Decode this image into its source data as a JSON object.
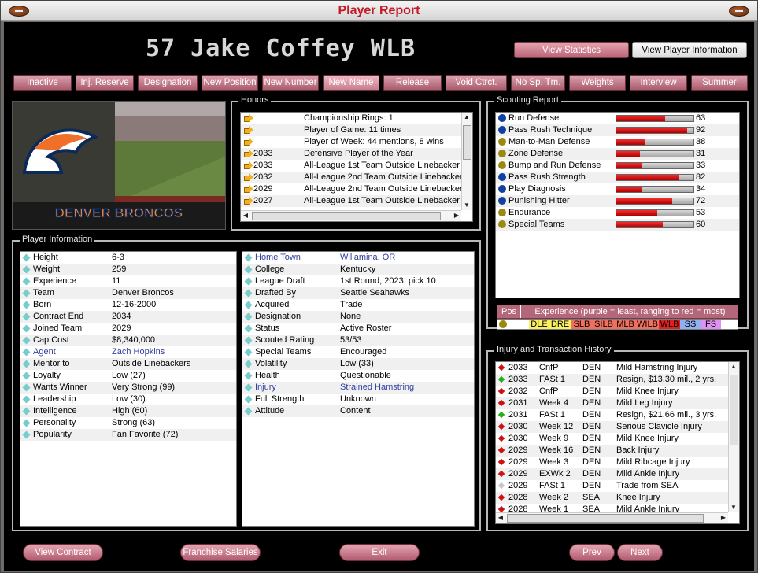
{
  "window": {
    "title": "Player Report"
  },
  "player": {
    "heading": "57  Jake Coffey  WLB"
  },
  "top_buttons": {
    "view_statistics": "View Statistics",
    "view_player_information": "View Player Information"
  },
  "nav": [
    "Inactive",
    "Inj. Reserve",
    "Designation",
    "New Position",
    "New Number",
    "New Name",
    "Release",
    "Void Ctrct.",
    "No Sp. Tm.",
    "Weights",
    "Interview",
    "Summer"
  ],
  "team": {
    "name": "DENVER BRONCOS"
  },
  "honors": {
    "label": "Honors",
    "rows": [
      {
        "year": "",
        "text": "Championship Rings: 1"
      },
      {
        "year": "",
        "text": "Player of Game: 11 times"
      },
      {
        "year": "",
        "text": "Player of Week: 44 mentions, 8 wins"
      },
      {
        "year": "2033",
        "text": "Defensive Player of the Year"
      },
      {
        "year": "2033",
        "text": "All-League 1st Team Outside Linebacker"
      },
      {
        "year": "2032",
        "text": "All-League 2nd Team Outside Linebacker"
      },
      {
        "year": "2029",
        "text": "All-League 2nd Team Outside Linebacker"
      },
      {
        "year": "2027",
        "text": "All-League 1st Team Outside Linebacker"
      }
    ]
  },
  "scouting": {
    "label": "Scouting Report",
    "rows": [
      {
        "name": "Run Defense",
        "value": 63,
        "dot": "#1040a0"
      },
      {
        "name": "Pass Rush Technique",
        "value": 92,
        "dot": "#1040a0"
      },
      {
        "name": "Man-to-Man Defense",
        "value": 38,
        "dot": "#9a8a10"
      },
      {
        "name": "Zone Defense",
        "value": 31,
        "dot": "#9a8a10"
      },
      {
        "name": "Bump and Run Defense",
        "value": 33,
        "dot": "#9a8a10"
      },
      {
        "name": "Pass Rush Strength",
        "value": 82,
        "dot": "#1040a0"
      },
      {
        "name": "Play Diagnosis",
        "value": 34,
        "dot": "#1040a0"
      },
      {
        "name": "Punishing Hitter",
        "value": 72,
        "dot": "#1040a0"
      },
      {
        "name": "Endurance",
        "value": 53,
        "dot": "#9a8a10"
      },
      {
        "name": "Special Teams",
        "value": 60,
        "dot": "#9a8a10"
      }
    ]
  },
  "experience": {
    "pos_header": "Pos",
    "header": "Experience (purple = least, ranging to red = most)",
    "positions": [
      {
        "label": "DLE",
        "color": "#f8f060"
      },
      {
        "label": "DRE",
        "color": "#f8f060"
      },
      {
        "label": "SLB",
        "color": "#f07060"
      },
      {
        "label": "SILB",
        "color": "#f07060"
      },
      {
        "label": "MLB",
        "color": "#f07060"
      },
      {
        "label": "WILB",
        "color": "#f07060"
      },
      {
        "label": "WLB",
        "color": "#e02020"
      },
      {
        "label": "SS",
        "color": "#90b0f0"
      },
      {
        "label": "FS",
        "color": "#e090f0"
      }
    ]
  },
  "info_left": {
    "label": "Player Information",
    "rows": [
      {
        "k": "Height",
        "v": "6-3",
        "link": false
      },
      {
        "k": "Weight",
        "v": "259",
        "link": false
      },
      {
        "k": "Experience",
        "v": "11",
        "link": false
      },
      {
        "k": "Team",
        "v": "Denver Broncos",
        "link": false
      },
      {
        "k": "Born",
        "v": "12-16-2000",
        "link": false
      },
      {
        "k": "Contract End",
        "v": "2034",
        "link": false
      },
      {
        "k": "Joined Team",
        "v": "2029",
        "link": false
      },
      {
        "k": "Cap Cost",
        "v": "$8,340,000",
        "link": false
      },
      {
        "k": "Agent",
        "v": "Zach Hopkins",
        "link": true
      },
      {
        "k": "Mentor to",
        "v": "Outside Linebackers",
        "link": false
      },
      {
        "k": "Loyalty",
        "v": "Low (27)",
        "link": false
      },
      {
        "k": "Wants Winner",
        "v": "Very Strong (99)",
        "link": false
      },
      {
        "k": "Leadership",
        "v": "Low (30)",
        "link": false
      },
      {
        "k": "Intelligence",
        "v": "High (60)",
        "link": false
      },
      {
        "k": "Personality",
        "v": "Strong (63)",
        "link": false
      },
      {
        "k": "Popularity",
        "v": "Fan Favorite (72)",
        "link": false
      }
    ]
  },
  "info_right": {
    "rows": [
      {
        "k": "Home Town",
        "v": "Willamina, OR",
        "link": true
      },
      {
        "k": "College",
        "v": "Kentucky",
        "link": false
      },
      {
        "k": "League Draft",
        "v": "1st Round, 2023, pick 10",
        "link": false
      },
      {
        "k": "Drafted By",
        "v": "Seattle Seahawks",
        "link": false
      },
      {
        "k": "Acquired",
        "v": "Trade",
        "link": false
      },
      {
        "k": "Designation",
        "v": "None",
        "link": false
      },
      {
        "k": "Status",
        "v": "Active Roster",
        "link": false
      },
      {
        "k": "Scouted Rating",
        "v": "53/53",
        "link": false
      },
      {
        "k": "Special Teams",
        "v": "Encouraged",
        "link": false
      },
      {
        "k": "Volatility",
        "v": "Low (33)",
        "link": false
      },
      {
        "k": "Health",
        "v": "Questionable",
        "link": false
      },
      {
        "k": "Injury",
        "v": "Strained Hamstring",
        "link": true
      },
      {
        "k": "Full Strength",
        "v": "Unknown",
        "link": false
      },
      {
        "k": "Attitude",
        "v": "Content",
        "link": false
      }
    ]
  },
  "history": {
    "label": "Injury and Transaction History",
    "rows": [
      {
        "year": "2033",
        "period": "CnfP",
        "team": "DEN",
        "desc": "Mild Hamstring Injury",
        "c": "#d01010"
      },
      {
        "year": "2033",
        "period": "FASt 1",
        "team": "DEN",
        "desc": "Resign, $13.30 mil., 2 yrs.",
        "c": "#20b020"
      },
      {
        "year": "2032",
        "period": "CnfP",
        "team": "DEN",
        "desc": "Mild Knee Injury",
        "c": "#d01010"
      },
      {
        "year": "2031",
        "period": "Week 4",
        "team": "DEN",
        "desc": "Mild Leg Injury",
        "c": "#d01010"
      },
      {
        "year": "2031",
        "period": "FASt 1",
        "team": "DEN",
        "desc": "Resign, $21.66 mil., 3 yrs.",
        "c": "#20b020"
      },
      {
        "year": "2030",
        "period": "Week 12",
        "team": "DEN",
        "desc": "Serious Clavicle Injury",
        "c": "#d01010"
      },
      {
        "year": "2030",
        "period": "Week 9",
        "team": "DEN",
        "desc": "Mild Knee Injury",
        "c": "#d01010"
      },
      {
        "year": "2029",
        "period": "Week 16",
        "team": "DEN",
        "desc": "Back Injury",
        "c": "#d01010"
      },
      {
        "year": "2029",
        "period": "Week 3",
        "team": "DEN",
        "desc": "Mild Ribcage Injury",
        "c": "#d01010"
      },
      {
        "year": "2029",
        "period": "EXWk 2",
        "team": "DEN",
        "desc": "Mild Ankle Injury",
        "c": "#d01010"
      },
      {
        "year": "2029",
        "period": "FASt 1",
        "team": "DEN",
        "desc": "Trade from SEA",
        "c": "#c8c8c8"
      },
      {
        "year": "2028",
        "period": "Week 2",
        "team": "SEA",
        "desc": "Knee Injury",
        "c": "#d01010"
      },
      {
        "year": "2028",
        "period": "Week 1",
        "team": "SEA",
        "desc": "Mild Ankle Injury",
        "c": "#d01010"
      }
    ]
  },
  "bottom": {
    "view_contract": "View Contract",
    "franchise_salaries": "Franchise Salaries",
    "exit": "Exit",
    "prev": "Prev",
    "next": "Next"
  }
}
